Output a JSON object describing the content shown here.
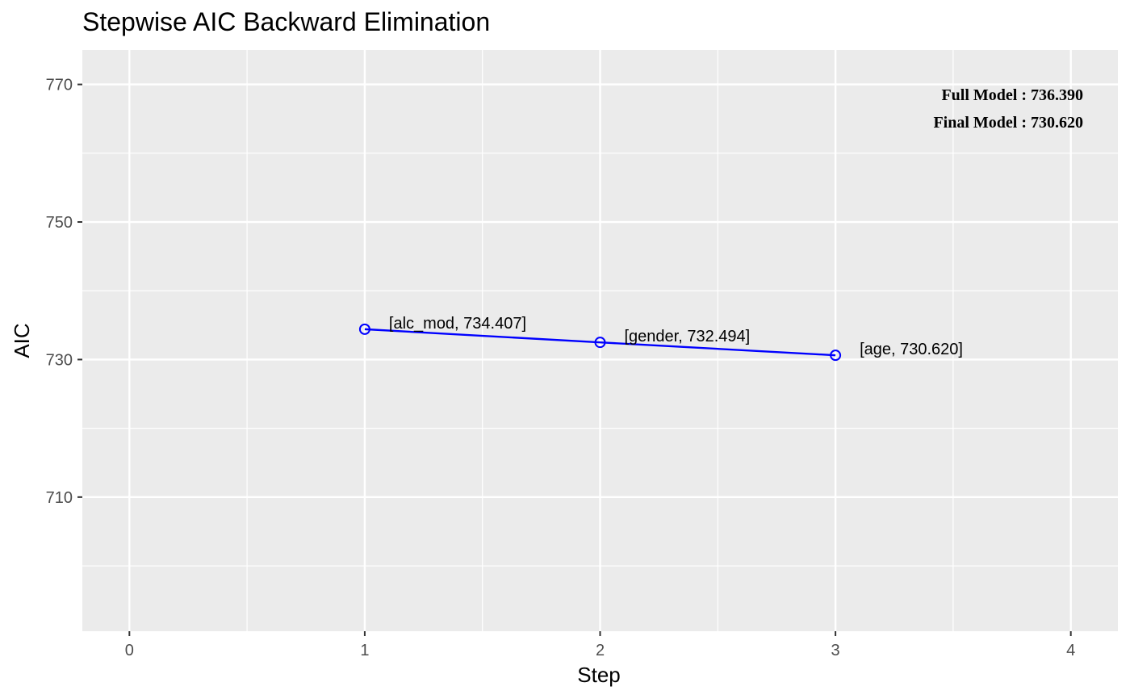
{
  "chart_data": {
    "type": "line",
    "title": "Stepwise AIC Backward Elimination",
    "xlabel": "Step",
    "ylabel": "AIC",
    "xlim": [
      -0.2,
      4.2
    ],
    "ylim": [
      690.5,
      775
    ],
    "x_ticks": [
      0,
      1,
      2,
      3,
      4
    ],
    "y_ticks": [
      710,
      730,
      750,
      770
    ],
    "x_minor": [
      0.5,
      1.5,
      2.5,
      3.5
    ],
    "y_minor": [
      700,
      720,
      740,
      760
    ],
    "grid": true,
    "line_color": "#0000ff",
    "panel_color": "#ebebeb",
    "series": [
      {
        "x": [
          1,
          2,
          3
        ],
        "values": [
          734.407,
          732.494,
          730.62
        ],
        "labels": [
          "[alc_mod, 734.407]",
          "[gender, 732.494]",
          "[age, 730.620]"
        ]
      }
    ],
    "annotations": {
      "full_model": "Full Model  : 736.390",
      "final_model": "Final Model : 730.620"
    }
  }
}
